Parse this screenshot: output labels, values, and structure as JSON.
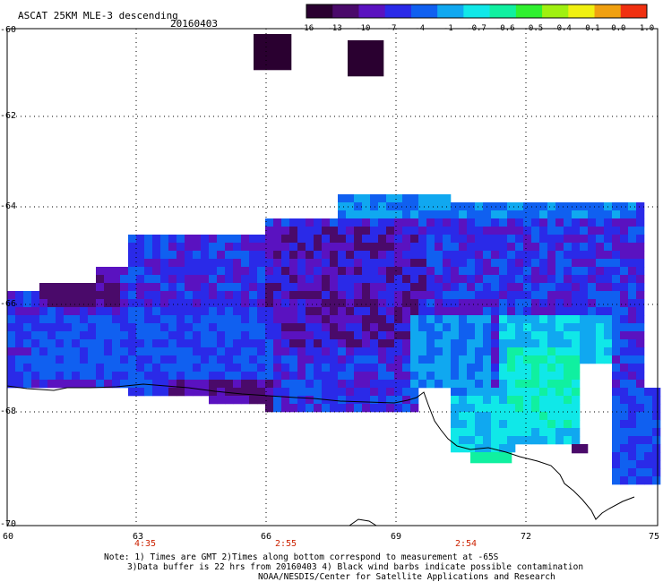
{
  "header": {
    "title": "ASCAT 25KM MLE-3 descending",
    "date": "20160403"
  },
  "colorbar": {
    "labels": [
      "-16",
      "-13",
      "-10",
      "-7",
      "-4",
      "-1",
      "-0.7",
      "-0.6",
      "-0.5",
      "-0.4",
      "-0.1",
      "0.0",
      "1.0"
    ],
    "colors": [
      "#2a0030",
      "#4a0a6a",
      "#5a12c0",
      "#2a2ae8",
      "#1060f0",
      "#10a8f0",
      "#10e8e8",
      "#10f0a0",
      "#30f030",
      "#a0f010",
      "#f0f010",
      "#f0a010",
      "#f03010"
    ]
  },
  "axes": {
    "lat_labels": [
      "-60",
      "-62",
      "-64",
      "-66",
      "-68",
      "-70"
    ],
    "lon_labels": [
      "60",
      "63",
      "66",
      "69",
      "72",
      "75"
    ]
  },
  "times": [
    "4:35",
    "2:55",
    "2:54"
  ],
  "notes": [
    "Note: 1) Times are GMT 2)Times along bottom correspond to measurement at -65S",
    "3)Data buffer is 22 hrs from 20160403 4) Black wind barbs indicate possible contamination",
    "NOAA/NESDIS/Center for Satellite Applications and Research"
  ]
}
